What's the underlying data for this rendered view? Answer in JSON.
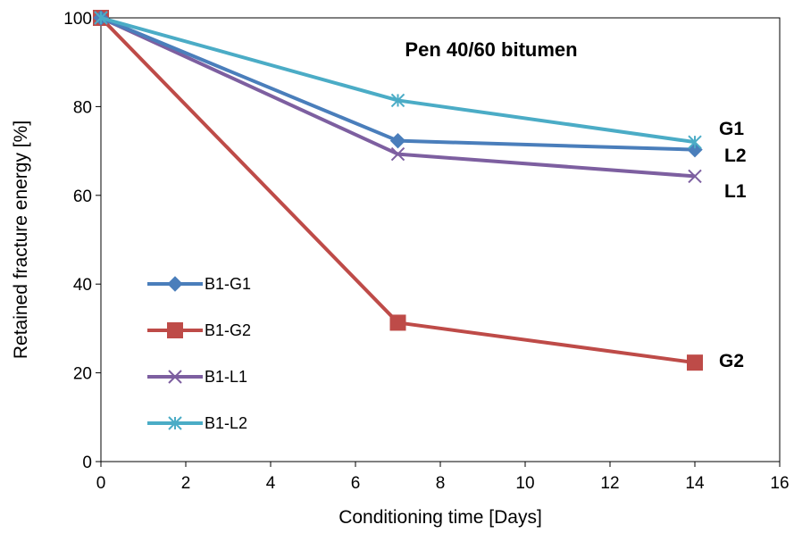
{
  "chart_data": {
    "type": "line",
    "title": "Pen 40/60 bitumen",
    "xlabel": "Conditioning time [Days]",
    "ylabel": "Retained fracture energy [%]",
    "xlim": [
      0,
      16
    ],
    "ylim": [
      0,
      100
    ],
    "xticks": [
      0,
      2,
      4,
      6,
      8,
      10,
      12,
      14,
      16
    ],
    "yticks": [
      0,
      20,
      40,
      60,
      80,
      100
    ],
    "grid": false,
    "legend_position": "left-center",
    "x": [
      0,
      7,
      14
    ],
    "series": [
      {
        "name": "B1-G1",
        "values": [
          100,
          72.3,
          70.3
        ],
        "color": "#4A7EBB",
        "marker": "diamond",
        "end_label": "G1"
      },
      {
        "name": "B1-G2",
        "values": [
          100,
          31.3,
          22.3
        ],
        "color": "#BE4B48",
        "marker": "square",
        "end_label": "G2"
      },
      {
        "name": "B1-L1",
        "values": [
          100,
          69.3,
          64.3
        ],
        "color": "#7D5FA0",
        "marker": "x",
        "end_label": "L1"
      },
      {
        "name": "B1-L2",
        "values": [
          100,
          81.4,
          72.0
        ],
        "color": "#4BACC6",
        "marker": "asterisk",
        "end_label": "L2"
      }
    ]
  }
}
